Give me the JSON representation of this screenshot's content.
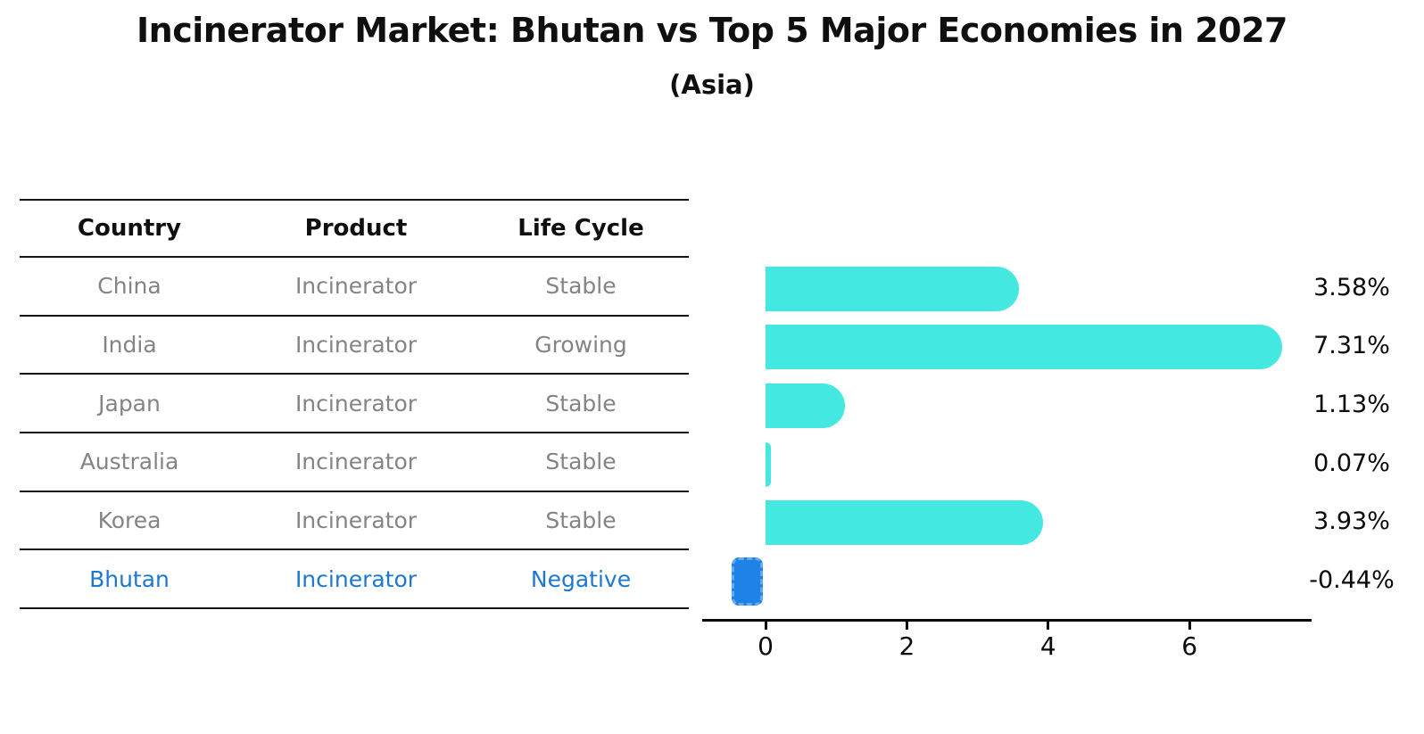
{
  "title": "Incinerator Market: Bhutan vs Top 5 Major Economies in 2027",
  "subtitle": "(Asia)",
  "table": {
    "headers": [
      "Country",
      "Product",
      "Life Cycle"
    ],
    "rows": [
      {
        "country": "China",
        "product": "Incinerator",
        "life_cycle": "Stable",
        "highlight": false
      },
      {
        "country": "India",
        "product": "Incinerator",
        "life_cycle": "Growing",
        "highlight": false
      },
      {
        "country": "Japan",
        "product": "Incinerator",
        "life_cycle": "Stable",
        "highlight": false
      },
      {
        "country": "Australia",
        "product": "Incinerator",
        "life_cycle": "Stable",
        "highlight": false
      },
      {
        "country": "Korea",
        "product": "Incinerator",
        "life_cycle": "Stable",
        "highlight": false
      },
      {
        "country": "Bhutan",
        "product": "Incinerator",
        "life_cycle": "Negative",
        "highlight": true
      }
    ]
  },
  "chart_data": {
    "type": "bar",
    "orientation": "horizontal",
    "title": "Incinerator Market: Bhutan vs Top 5 Major Economies in 2027",
    "subtitle": "(Asia)",
    "categories": [
      "China",
      "India",
      "Japan",
      "Australia",
      "Korea",
      "Bhutan"
    ],
    "values": [
      3.58,
      7.31,
      1.13,
      0.07,
      3.93,
      -0.44
    ],
    "value_labels": [
      "3.58%",
      "7.31%",
      "1.13%",
      "0.07%",
      "3.93%",
      "-0.44%"
    ],
    "x_ticks": [
      "0",
      "2",
      "4",
      "6"
    ],
    "x_tick_values": [
      0,
      2,
      4,
      6
    ],
    "xlim": [
      -0.9,
      7.73
    ],
    "grid": false,
    "legend": "none",
    "colors": {
      "bar_positive": "#43e8e0",
      "bar_negative": "#1e82e6",
      "bar_negative_border": "#66a8ef",
      "highlight_text": "#1c78d2",
      "table_text": "#848484",
      "axis": "#0a0a0a"
    }
  }
}
